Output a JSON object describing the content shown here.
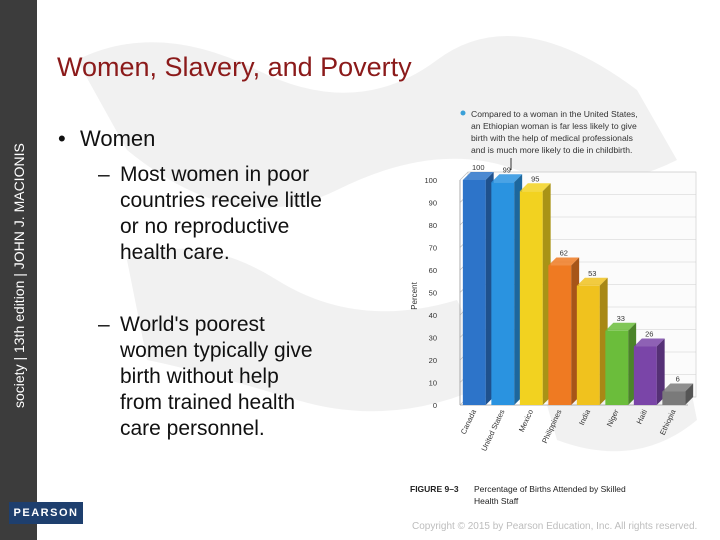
{
  "slide": {
    "title": "Women, Slavery, and Poverty",
    "bullet": "Women",
    "bullet_marker": "•",
    "dash": "–",
    "sub1": [
      "Most women in poor",
      "countries receive little",
      "or no reproductive",
      "health care."
    ],
    "sub2": [
      "World's poorest",
      "women typically give",
      "birth without help",
      "from trained health",
      "care personnel."
    ]
  },
  "brand": {
    "vertical_text": "society | 13th edition | JOHN J. MACIONIS",
    "publisher": "PEARSON",
    "copyright": "Copyright © 2015 by Pearson Education, Inc. All rights reserved."
  },
  "colors": {
    "title": "#8b1a1a",
    "sidebar": "#3c3c3c",
    "publisher_bg": "#1e3f6e",
    "caption_bullet": "#3aa0d8"
  },
  "chart_data": {
    "type": "bar",
    "caption_note": [
      "Compared to a woman in the United States,",
      "an Ethiopian woman is far less likely to give",
      "birth with the help of medical professionals",
      "and is much more likely to die in childbirth."
    ],
    "figure_label": "FIGURE 9–3",
    "figure_caption": [
      "Percentage of Births Attended by Skilled",
      "Health Staff"
    ],
    "ylabel": "Percent",
    "ylim": [
      0,
      100
    ],
    "yticks": [
      0,
      10,
      20,
      30,
      40,
      50,
      60,
      70,
      80,
      90,
      100
    ],
    "categories": [
      "Canada",
      "United States",
      "Mexico",
      "Philippines",
      "India",
      "Niger",
      "Haiti",
      "Ethiopia"
    ],
    "values": [
      100,
      99,
      95,
      62,
      53,
      33,
      26,
      6
    ],
    "value_labels": [
      "100",
      "99",
      "95",
      "62",
      "53",
      "33",
      "26",
      "6"
    ],
    "bar_colors": [
      "#2d74c9",
      "#2a93e0",
      "#f2d220",
      "#ef7a22",
      "#f0c21e",
      "#6bbd3b",
      "#7a45a8",
      "#7a7a7a"
    ],
    "grid": true
  }
}
